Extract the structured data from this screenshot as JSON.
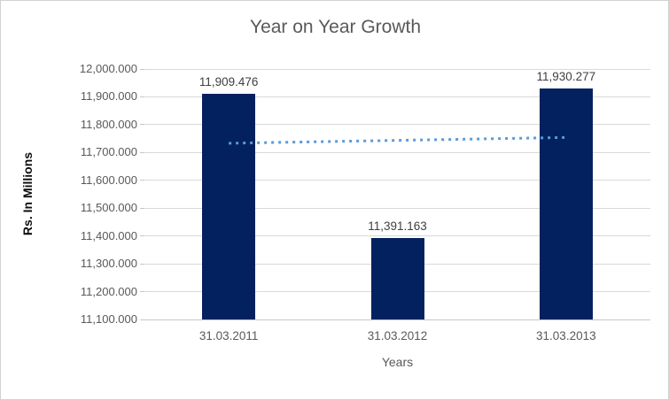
{
  "chart_data": {
    "type": "bar",
    "title": "Year on Year Growth",
    "xlabel": "Years",
    "ylabel": "Rs. In Millions",
    "categories": [
      "31.03.2011",
      "31.03.2012",
      "31.03.2013"
    ],
    "values": [
      11909.476,
      11391.163,
      11930.277
    ],
    "data_labels": [
      "11,909.476",
      "11,391.163",
      "11,930.277"
    ],
    "ylim": [
      11100,
      12000
    ],
    "ytick_step": 100,
    "ytick_labels": [
      "12,000.000",
      "11,900.000",
      "11,800.000",
      "11,700.000",
      "11,600.000",
      "11,500.000",
      "11,400.000",
      "11,300.000",
      "11,200.000",
      "11,100.000"
    ],
    "grid": true,
    "legend": false,
    "trendline": {
      "type": "linear",
      "style": "dotted"
    },
    "colors": {
      "bar": "#03215f",
      "gridline": "#d9d9d9",
      "axis_line": "#c6c6c6",
      "axis_text": "#595959",
      "title_text": "#595959",
      "data_label_text": "#3f3f3f",
      "trendline": "#5b9bd5",
      "border": "#d2d2d2",
      "background": "#ffffff"
    }
  }
}
